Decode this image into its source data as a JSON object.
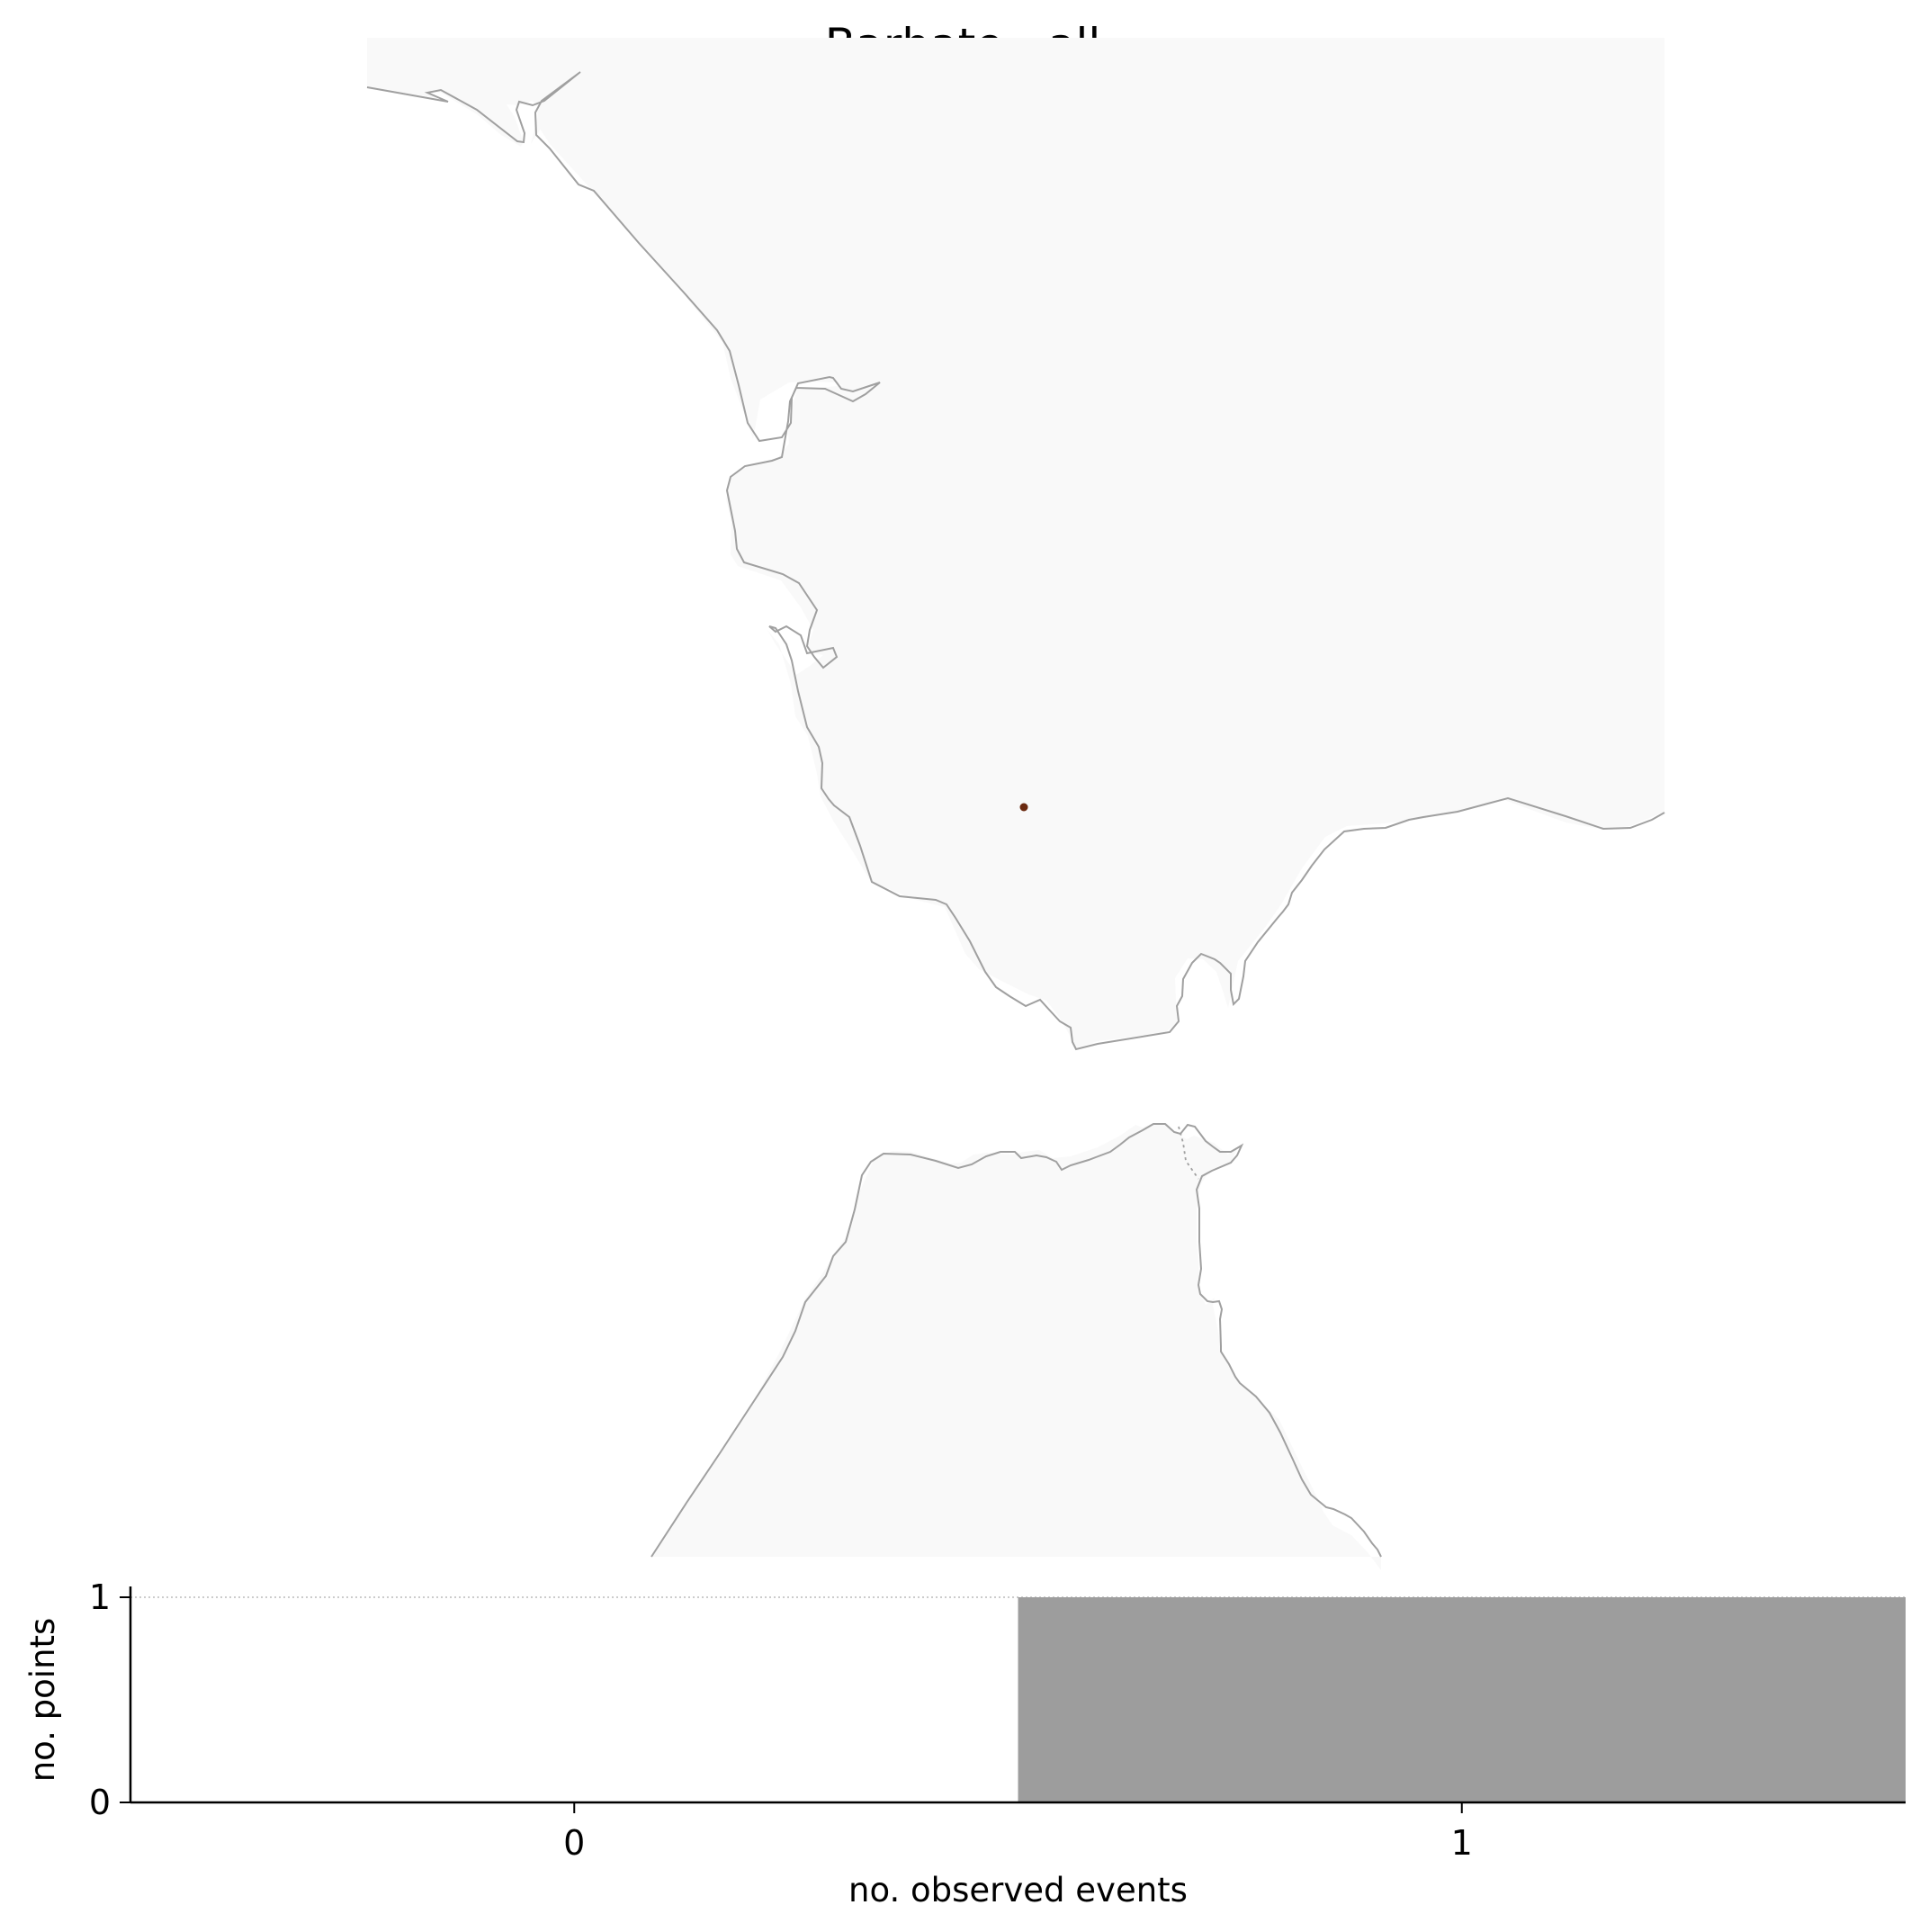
{
  "title": "Barbate - all",
  "map": {
    "land_color": "#f9f9f9",
    "coast_color": "#a0a0a0",
    "marker_color": "#6b2a10",
    "marker_label": ""
  },
  "chart_data": {
    "type": "bar",
    "title": "",
    "xlabel": "no. observed events",
    "ylabel": "no. points",
    "categories": [
      "0",
      "1"
    ],
    "x": [
      0,
      1
    ],
    "values": [
      0,
      1
    ],
    "xlim": [
      -0.5,
      1.5
    ],
    "ylim": [
      0,
      1
    ],
    "xticks": [
      "0",
      "1"
    ],
    "yticks": [
      "0",
      "1"
    ],
    "bar_color": "#9d9d9d",
    "grid": false,
    "reference_line": {
      "y": 1,
      "style": "dotted"
    }
  }
}
